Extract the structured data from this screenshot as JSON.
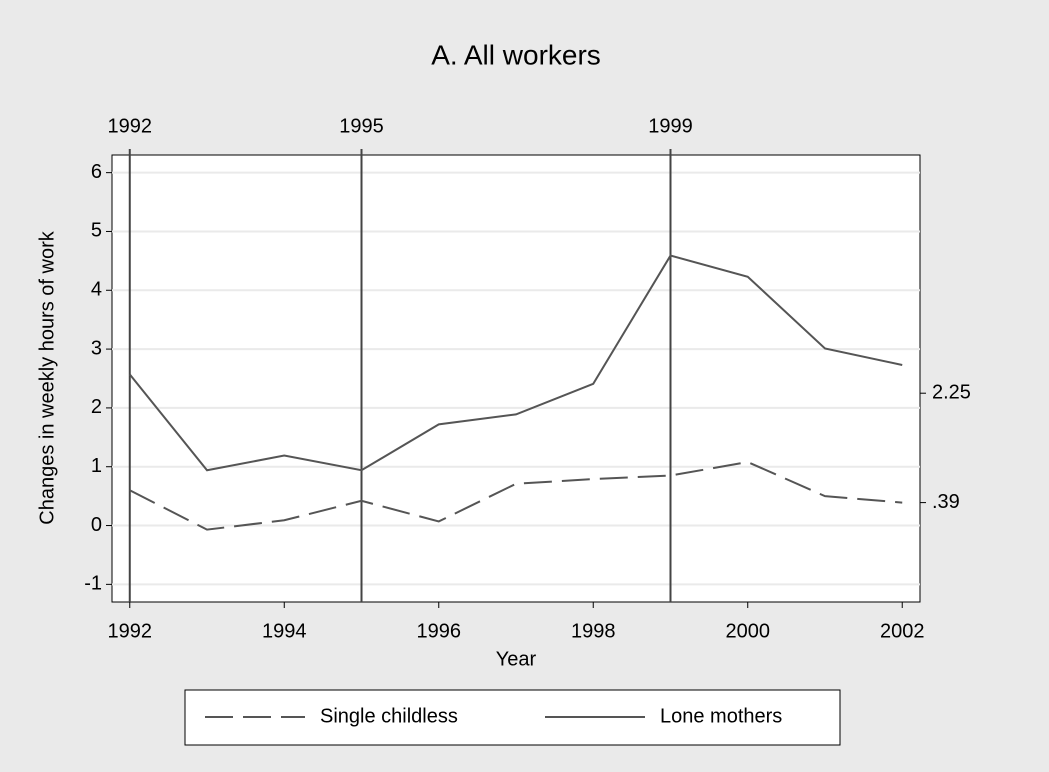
{
  "chart_data": {
    "type": "line",
    "title": "A. All workers",
    "x_label": "Year",
    "y_label": "Changes in weekly hours of work",
    "x": [
      1992,
      1993,
      1994,
      1995,
      1996,
      1997,
      1998,
      1999,
      2000,
      2001,
      2002
    ],
    "series": [
      {
        "name": "Single childless",
        "color": "#555555",
        "line_style": "dashed",
        "values": [
          0.6,
          -0.07,
          0.09,
          0.42,
          0.07,
          0.71,
          0.79,
          0.85,
          1.08,
          0.5,
          0.39
        ]
      },
      {
        "name": "Lone mothers",
        "color": "#555555",
        "line_style": "solid",
        "values": [
          2.57,
          0.94,
          1.19,
          0.94,
          1.72,
          1.89,
          2.41,
          4.59,
          4.23,
          3.01,
          2.73
        ]
      }
    ],
    "xlim": [
      1991.77,
      2002.23
    ],
    "xticks": [
      1992,
      1994,
      1996,
      1998,
      2000,
      2002
    ],
    "x2ticks": [
      1992,
      1995,
      1999
    ],
    "ylim": [
      -1.3,
      6.3
    ],
    "yticks": [
      -1,
      0,
      1,
      2,
      3,
      4,
      5,
      6
    ],
    "y2lim": [
      -1.3,
      6.3
    ],
    "y2ticks": [
      2.25,
      {
        "value": 0.39,
        "label": ".39"
      }
    ],
    "grid": true,
    "legend": "bottom"
  }
}
